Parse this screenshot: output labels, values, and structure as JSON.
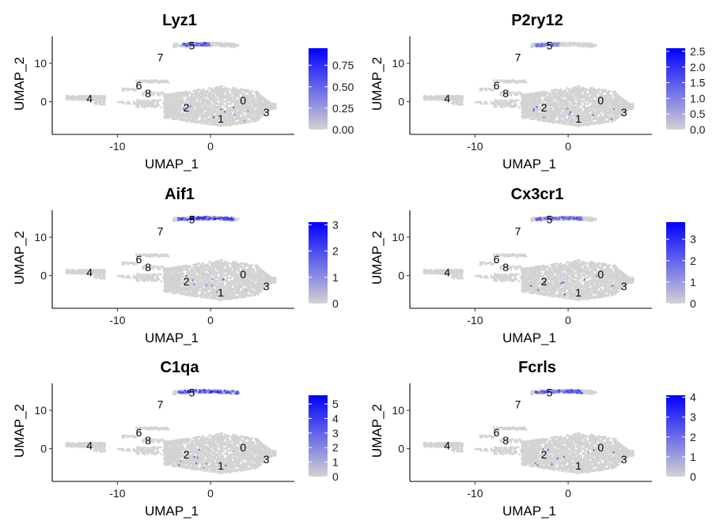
{
  "chart_data": [
    {
      "type": "scatter",
      "title": "Lyz1",
      "xlabel": "UMAP_1",
      "ylabel": "UMAP_2",
      "xlim": [
        -17,
        9
      ],
      "ylim": [
        -8.5,
        17
      ],
      "x_ticks": [
        -10,
        0
      ],
      "y_ticks": [
        0,
        10
      ],
      "color_low": "#d3d3d3",
      "color_high": "#0000ff",
      "legend_ticks": [
        "0.00",
        "0.25",
        "0.50",
        "0.75"
      ],
      "legend_max": 0.95,
      "cluster_labels": [
        {
          "label": "0",
          "x": 3.5,
          "y": 0.3
        },
        {
          "label": "1",
          "x": 1.1,
          "y": -4.4
        },
        {
          "label": "2",
          "x": -2.6,
          "y": -1.5
        },
        {
          "label": "3",
          "x": 6,
          "y": -2.7
        },
        {
          "label": "4",
          "x": -13,
          "y": 0.9
        },
        {
          "label": "5",
          "x": -2,
          "y": 14.6
        },
        {
          "label": "6",
          "x": -7.7,
          "y": 4.3
        },
        {
          "label": "7",
          "x": -5.4,
          "y": 11.5
        },
        {
          "label": "8",
          "x": -6.7,
          "y": 2.2
        }
      ],
      "expression_hotspots": [
        {
          "cluster": "5",
          "x_range": [
            -3,
            0
          ],
          "level": 0.55
        }
      ]
    },
    {
      "type": "scatter",
      "title": "P2ry12",
      "xlabel": "UMAP_1",
      "ylabel": "UMAP_2",
      "xlim": [
        -17,
        9
      ],
      "ylim": [
        -8.5,
        17
      ],
      "x_ticks": [
        -10,
        0
      ],
      "y_ticks": [
        0,
        10
      ],
      "color_low": "#d3d3d3",
      "color_high": "#0000ff",
      "legend_ticks": [
        "0.0",
        "0.5",
        "1.0",
        "1.5",
        "2.0",
        "2.5"
      ],
      "legend_max": 2.6,
      "cluster_labels": [
        {
          "label": "0",
          "x": 3.5,
          "y": 0.3
        },
        {
          "label": "1",
          "x": 1.1,
          "y": -4.4
        },
        {
          "label": "2",
          "x": -2.6,
          "y": -1.5
        },
        {
          "label": "3",
          "x": 6,
          "y": -2.7
        },
        {
          "label": "4",
          "x": -13,
          "y": 0.9
        },
        {
          "label": "5",
          "x": -2,
          "y": 14.6
        },
        {
          "label": "6",
          "x": -7.7,
          "y": 4.3
        },
        {
          "label": "7",
          "x": -5.4,
          "y": 11.5
        },
        {
          "label": "8",
          "x": -6.7,
          "y": 2.2
        }
      ],
      "expression_hotspots": [
        {
          "cluster": "5",
          "x_range": [
            -3.5,
            -1
          ],
          "level": 0.45
        }
      ]
    },
    {
      "type": "scatter",
      "title": "Aif1",
      "xlabel": "UMAP_1",
      "ylabel": "UMAP_2",
      "xlim": [
        -17,
        9
      ],
      "ylim": [
        -8.5,
        17
      ],
      "x_ticks": [
        -10,
        0
      ],
      "y_ticks": [
        0,
        10
      ],
      "color_low": "#d3d3d3",
      "color_high": "#0000ff",
      "legend_ticks": [
        "0",
        "1",
        "2",
        "3"
      ],
      "legend_max": 3.1,
      "cluster_labels": [
        {
          "label": "0",
          "x": 3.5,
          "y": 0.3
        },
        {
          "label": "1",
          "x": 1.1,
          "y": -4.4
        },
        {
          "label": "2",
          "x": -2.6,
          "y": -1.5
        },
        {
          "label": "3",
          "x": 6,
          "y": -2.7
        },
        {
          "label": "4",
          "x": -13,
          "y": 0.9
        },
        {
          "label": "5",
          "x": -2,
          "y": 14.6
        },
        {
          "label": "6",
          "x": -7.7,
          "y": 4.3
        },
        {
          "label": "7",
          "x": -5.4,
          "y": 11.5
        },
        {
          "label": "8",
          "x": -6.7,
          "y": 2.2
        }
      ],
      "expression_hotspots": [
        {
          "cluster": "5",
          "x_range": [
            -3.5,
            2.5
          ],
          "level": 0.75
        }
      ]
    },
    {
      "type": "scatter",
      "title": "Cx3cr1",
      "xlabel": "UMAP_1",
      "ylabel": "UMAP_2",
      "xlim": [
        -17,
        9
      ],
      "ylim": [
        -8.5,
        17
      ],
      "x_ticks": [
        -10,
        0
      ],
      "y_ticks": [
        0,
        10
      ],
      "color_low": "#d3d3d3",
      "color_high": "#0000ff",
      "legend_ticks": [
        "0",
        "1",
        "2",
        "3"
      ],
      "legend_max": 3.8,
      "cluster_labels": [
        {
          "label": "0",
          "x": 3.5,
          "y": 0.3
        },
        {
          "label": "1",
          "x": 1.1,
          "y": -4.4
        },
        {
          "label": "2",
          "x": -2.6,
          "y": -1.5
        },
        {
          "label": "3",
          "x": 6,
          "y": -2.7
        },
        {
          "label": "4",
          "x": -13,
          "y": 0.9
        },
        {
          "label": "5",
          "x": -2,
          "y": 14.6
        },
        {
          "label": "6",
          "x": -7.7,
          "y": 4.3
        },
        {
          "label": "7",
          "x": -5.4,
          "y": 11.5
        },
        {
          "label": "8",
          "x": -6.7,
          "y": 2.2
        }
      ],
      "expression_hotspots": [
        {
          "cluster": "5",
          "x_range": [
            -3.5,
            1.5
          ],
          "level": 0.55
        }
      ]
    },
    {
      "type": "scatter",
      "title": "C1qa",
      "xlabel": "UMAP_1",
      "ylabel": "UMAP_2",
      "xlim": [
        -17,
        9
      ],
      "ylim": [
        -8.5,
        17
      ],
      "x_ticks": [
        -10,
        0
      ],
      "y_ticks": [
        0,
        10
      ],
      "color_low": "#d3d3d3",
      "color_high": "#0000ff",
      "legend_ticks": [
        "0",
        "1",
        "2",
        "3",
        "4",
        "5"
      ],
      "legend_max": 5.6,
      "cluster_labels": [
        {
          "label": "0",
          "x": 3.5,
          "y": 0.3
        },
        {
          "label": "1",
          "x": 1.1,
          "y": -4.4
        },
        {
          "label": "2",
          "x": -2.6,
          "y": -1.5
        },
        {
          "label": "3",
          "x": 6,
          "y": -2.7
        },
        {
          "label": "4",
          "x": -13,
          "y": 0.9
        },
        {
          "label": "5",
          "x": -2,
          "y": 14.6
        },
        {
          "label": "6",
          "x": -7.7,
          "y": 4.3
        },
        {
          "label": "7",
          "x": -5.4,
          "y": 11.5
        },
        {
          "label": "8",
          "x": -6.7,
          "y": 2.2
        }
      ],
      "expression_hotspots": [
        {
          "cluster": "5",
          "x_range": [
            -3.5,
            3
          ],
          "level": 0.7
        }
      ]
    },
    {
      "type": "scatter",
      "title": "Fcrls",
      "xlabel": "UMAP_1",
      "ylabel": "UMAP_2",
      "xlim": [
        -17,
        9
      ],
      "ylim": [
        -8.5,
        17
      ],
      "x_ticks": [
        -10,
        0
      ],
      "y_ticks": [
        0,
        10
      ],
      "color_low": "#d3d3d3",
      "color_high": "#0000ff",
      "legend_ticks": [
        "0",
        "1",
        "2",
        "3",
        "4"
      ],
      "legend_max": 4.1,
      "cluster_labels": [
        {
          "label": "0",
          "x": 3.5,
          "y": 0.3
        },
        {
          "label": "1",
          "x": 1.1,
          "y": -4.4
        },
        {
          "label": "2",
          "x": -2.6,
          "y": -1.5
        },
        {
          "label": "3",
          "x": 6,
          "y": -2.7
        },
        {
          "label": "4",
          "x": -13,
          "y": 0.9
        },
        {
          "label": "5",
          "x": -2,
          "y": 14.6
        },
        {
          "label": "6",
          "x": -7.7,
          "y": 4.3
        },
        {
          "label": "7",
          "x": -5.4,
          "y": 11.5
        },
        {
          "label": "8",
          "x": -6.7,
          "y": 2.2
        }
      ],
      "expression_hotspots": [
        {
          "cluster": "5",
          "x_range": [
            -3.5,
            1.5
          ],
          "level": 0.6
        }
      ]
    }
  ]
}
